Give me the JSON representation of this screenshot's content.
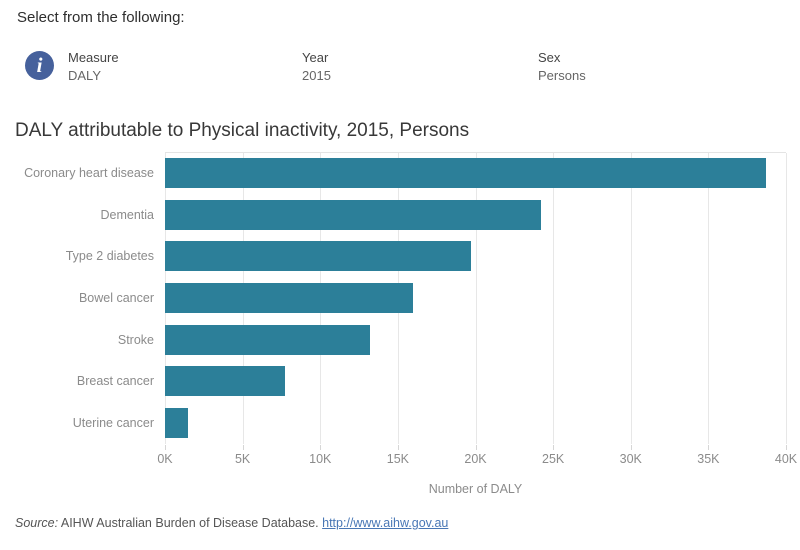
{
  "header": {
    "prompt": "Select from the following:",
    "filters": [
      {
        "label": "Measure",
        "value": "DALY"
      },
      {
        "label": "Year",
        "value": "2015"
      },
      {
        "label": "Sex",
        "value": "Persons"
      }
    ]
  },
  "chart_data": {
    "type": "bar",
    "orientation": "horizontal",
    "title": "DALY attributable to Physical inactivity, 2015, Persons",
    "categories": [
      "Coronary heart disease",
      "Dementia",
      "Type 2 diabetes",
      "Bowel cancer",
      "Stroke",
      "Breast cancer",
      "Uterine cancer"
    ],
    "values": [
      38700,
      24200,
      19700,
      16000,
      13200,
      7750,
      1450
    ],
    "xlabel": "Number of DALY",
    "x_ticks": [
      "0K",
      "5K",
      "10K",
      "15K",
      "20K",
      "25K",
      "30K",
      "35K",
      "40K"
    ],
    "xlim": [
      0,
      40000
    ],
    "grid": true,
    "legend": "none",
    "bar_color": "#2c7f99"
  },
  "icons": {
    "info": "i"
  },
  "colors": {
    "bar": "#2c7f99",
    "info_circle": "#46619c",
    "label_gray": "#8b8b8b",
    "link_blue": "#4977b5"
  },
  "footer": {
    "source_prefix": "Source:",
    "source_text": " AIHW Australian Burden of Disease Database. ",
    "link_text": "http://www.aihw.gov.au"
  }
}
